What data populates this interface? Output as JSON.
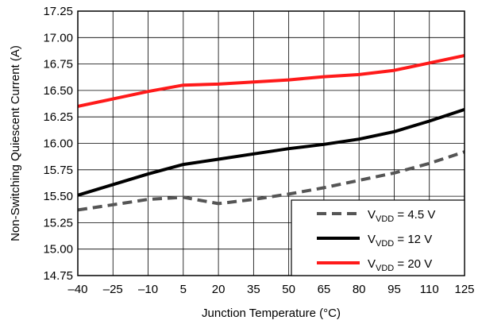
{
  "chart_data": {
    "type": "line",
    "xlabel": "Junction Temperature (°C)",
    "ylabel": "Non-Switching Quiescent Current (A)",
    "xlim": [
      -40,
      125
    ],
    "ylim": [
      14.75,
      17.25
    ],
    "grid": true,
    "legend_position": "bottom-right",
    "x_ticks": [
      -40,
      -25,
      -10,
      5,
      20,
      35,
      50,
      65,
      80,
      95,
      110,
      125
    ],
    "x_tick_labels": [
      "–40",
      "–25",
      "–10",
      "5",
      "20",
      "35",
      "50",
      "65",
      "80",
      "95",
      "110",
      "125"
    ],
    "y_ticks": [
      14.75,
      15.0,
      15.25,
      15.5,
      15.75,
      16.0,
      16.25,
      16.5,
      16.75,
      17.0,
      17.25
    ],
    "y_tick_labels": [
      "14.75",
      "15.00",
      "15.25",
      "15.50",
      "15.75",
      "16.00",
      "16.25",
      "16.50",
      "16.75",
      "17.00",
      "17.25"
    ],
    "series": [
      {
        "name": "VDD = 4.5 V",
        "legend_prefix": "V",
        "legend_sub": "VDD",
        "legend_suffix": " = 4.5 V",
        "color": "#555555",
        "dashed": true,
        "x": [
          -40,
          -25,
          -10,
          5,
          10,
          20,
          35,
          50,
          65,
          80,
          95,
          110,
          125
        ],
        "y": [
          15.37,
          15.42,
          15.47,
          15.49,
          15.47,
          15.43,
          15.47,
          15.52,
          15.58,
          15.65,
          15.72,
          15.81,
          15.92
        ]
      },
      {
        "name": "VDD = 12 V",
        "legend_prefix": "V",
        "legend_sub": "VDD",
        "legend_suffix": " = 12 V",
        "color": "#000000",
        "dashed": false,
        "x": [
          -40,
          -25,
          -10,
          5,
          20,
          35,
          50,
          65,
          80,
          95,
          110,
          125
        ],
        "y": [
          15.51,
          15.61,
          15.71,
          15.8,
          15.85,
          15.9,
          15.95,
          15.99,
          16.04,
          16.11,
          16.21,
          16.32
        ]
      },
      {
        "name": "VDD = 20 V",
        "legend_prefix": "V",
        "legend_sub": "VDD",
        "legend_suffix": " = 20 V",
        "color": "#ff1a1a",
        "dashed": false,
        "x": [
          -40,
          -25,
          -10,
          5,
          20,
          35,
          50,
          65,
          80,
          95,
          110,
          125
        ],
        "y": [
          16.35,
          16.42,
          16.49,
          16.55,
          16.56,
          16.58,
          16.6,
          16.63,
          16.65,
          16.69,
          16.76,
          16.83
        ]
      }
    ]
  }
}
